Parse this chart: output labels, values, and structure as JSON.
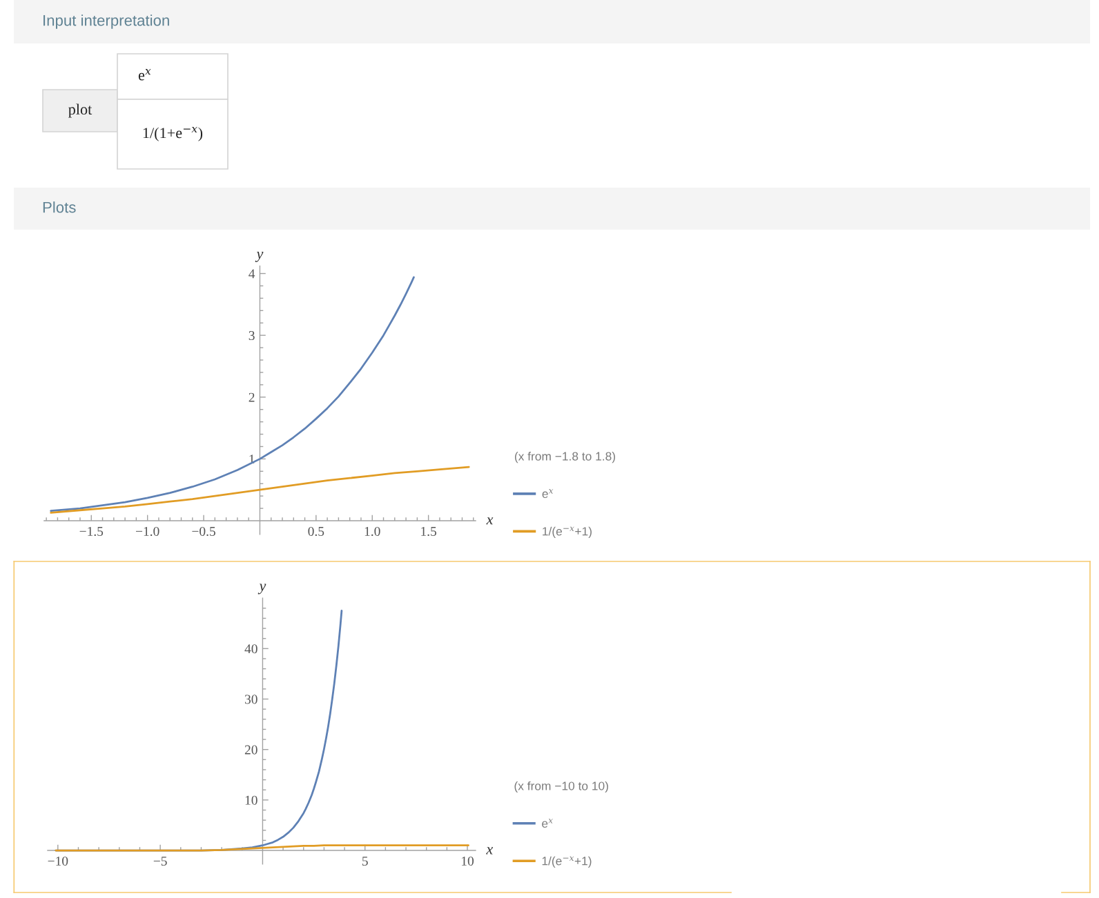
{
  "chart_data": [
    {
      "type": "other",
      "title": "Input interpretation",
      "annotations": [
        "plot",
        "e$^{x}$",
        "1/(1+e$^{−x}$)"
      ]
    },
    {
      "type": "line",
      "title": "Plots",
      "xlabel": "x",
      "ylabel": "y",
      "legend": "right",
      "legend_title": "(x from −1.8 to 1.8)",
      "xlim": [
        -1.92,
        1.92
      ],
      "ylim": [
        -0.22,
        4.12
      ],
      "xticks": [
        {
          "value": -1.9,
          "label": null
        },
        {
          "value": -1.8,
          "label": null
        },
        {
          "value": -1.7,
          "label": null
        },
        {
          "value": -1.6,
          "label": null
        },
        {
          "value": -1.5,
          "label": "−1.5"
        },
        {
          "value": -1.4,
          "label": null
        },
        {
          "value": -1.3,
          "label": null
        },
        {
          "value": -1.2,
          "label": null
        },
        {
          "value": -1.1,
          "label": null
        },
        {
          "value": -1.0,
          "label": "−1.0"
        },
        {
          "value": -0.9,
          "label": null
        },
        {
          "value": -0.8,
          "label": null
        },
        {
          "value": -0.7,
          "label": null
        },
        {
          "value": -0.6,
          "label": null
        },
        {
          "value": -0.5,
          "label": "−0.5"
        },
        {
          "value": -0.4,
          "label": null
        },
        {
          "value": -0.3,
          "label": null
        },
        {
          "value": -0.2,
          "label": null
        },
        {
          "value": -0.1,
          "label": null
        },
        {
          "value": 0.1,
          "label": null
        },
        {
          "value": 0.2,
          "label": null
        },
        {
          "value": 0.3,
          "label": null
        },
        {
          "value": 0.4,
          "label": null
        },
        0.5,
        {
          "value": 0.6,
          "label": null
        },
        {
          "value": 0.7,
          "label": null
        },
        {
          "value": 0.8,
          "label": null
        },
        {
          "value": 0.9,
          "label": null
        },
        {
          "value": 1,
          "label": "1.0"
        },
        {
          "value": 1.1,
          "label": null
        },
        {
          "value": 1.2,
          "label": null
        },
        {
          "value": 1.3,
          "label": null
        },
        {
          "value": 1.4,
          "label": null
        },
        1.5,
        {
          "value": 1.6,
          "label": null
        },
        {
          "value": 1.7,
          "label": null
        },
        {
          "value": 1.8,
          "label": null
        },
        {
          "value": 1.9,
          "label": null
        }
      ],
      "yticks": [
        {
          "value": 0.2,
          "label": null
        },
        {
          "value": 0.4,
          "label": null
        },
        {
          "value": 0.6,
          "label": null
        },
        {
          "value": 0.8,
          "label": null
        },
        1,
        {
          "value": 1.2,
          "label": null
        },
        {
          "value": 1.4,
          "label": null
        },
        {
          "value": 1.6,
          "label": null
        },
        {
          "value": 1.8,
          "label": null
        },
        2,
        {
          "value": 2.2,
          "label": null
        },
        {
          "value": 2.4,
          "label": null
        },
        {
          "value": 2.6,
          "label": null
        },
        {
          "value": 2.8,
          "label": null
        },
        3,
        {
          "value": 3.2,
          "label": null
        },
        {
          "value": 3.4,
          "label": null
        },
        {
          "value": 3.6,
          "label": null
        },
        {
          "value": 3.8,
          "label": null
        },
        4
      ],
      "series": [
        {
          "name": "e$^{x}$",
          "color": "#5e81b5",
          "x": [
            -1.86,
            -1.6,
            -1.4,
            -1.2,
            -1.0,
            -0.8,
            -0.6,
            -0.4,
            -0.2,
            0,
            0.1,
            0.2,
            0.3,
            0.4,
            0.5,
            0.6,
            0.7,
            0.8,
            0.9,
            1.0,
            1.05,
            1.1,
            1.15,
            1.2,
            1.25,
            1.3,
            1.35,
            1.37
          ],
          "values": [
            0.16,
            0.2,
            0.25,
            0.3,
            0.37,
            0.45,
            0.55,
            0.67,
            0.82,
            1.0,
            1.11,
            1.22,
            1.35,
            1.49,
            1.65,
            1.82,
            2.01,
            2.23,
            2.46,
            2.72,
            2.86,
            3.0,
            3.16,
            3.32,
            3.49,
            3.67,
            3.86,
            3.94
          ]
        },
        {
          "name": "1/(e$^{−x}$+1)",
          "color": "#e19c24",
          "x": [
            -1.86,
            -1.6,
            -1.4,
            -1.2,
            -1.0,
            -0.8,
            -0.6,
            -0.4,
            -0.2,
            0,
            0.2,
            0.4,
            0.6,
            0.8,
            1.0,
            1.2,
            1.4,
            1.6,
            1.86
          ],
          "values": [
            0.13,
            0.17,
            0.2,
            0.23,
            0.27,
            0.31,
            0.35,
            0.4,
            0.45,
            0.5,
            0.55,
            0.6,
            0.65,
            0.69,
            0.73,
            0.77,
            0.8,
            0.83,
            0.87
          ]
        }
      ]
    },
    {
      "type": "line",
      "xlabel": "x",
      "ylabel": "y",
      "legend": "right",
      "legend_title": "(x from −10 to 10)",
      "xlim": [
        -10.5,
        10.4
      ],
      "ylim": [
        -2.7,
        50
      ],
      "xticks": [
        {
          "value": -10,
          "label": "−10"
        },
        {
          "value": -9,
          "label": null
        },
        {
          "value": -8,
          "label": null
        },
        {
          "value": -7,
          "label": null
        },
        {
          "value": -6,
          "label": null
        },
        {
          "value": -5,
          "label": "−5"
        },
        {
          "value": -4,
          "label": null
        },
        {
          "value": -3,
          "label": null
        },
        {
          "value": -2,
          "label": null
        },
        {
          "value": -1,
          "label": null
        },
        {
          "value": 1,
          "label": null
        },
        {
          "value": 2,
          "label": null
        },
        {
          "value": 3,
          "label": null
        },
        {
          "value": 4,
          "label": null
        },
        5,
        {
          "value": 6,
          "label": null
        },
        {
          "value": 7,
          "label": null
        },
        {
          "value": 8,
          "label": null
        },
        {
          "value": 9,
          "label": null
        },
        10
      ],
      "yticks": [
        {
          "value": 2,
          "label": null
        },
        {
          "value": 4,
          "label": null
        },
        {
          "value": 6,
          "label": null
        },
        {
          "value": 8,
          "label": null
        },
        10,
        {
          "value": 12,
          "label": null
        },
        {
          "value": 14,
          "label": null
        },
        {
          "value": 16,
          "label": null
        },
        {
          "value": 18,
          "label": null
        },
        20,
        {
          "value": 22,
          "label": null
        },
        {
          "value": 24,
          "label": null
        },
        {
          "value": 26,
          "label": null
        },
        {
          "value": 28,
          "label": null
        },
        30,
        {
          "value": 32,
          "label": null
        },
        {
          "value": 34,
          "label": null
        },
        {
          "value": 36,
          "label": null
        },
        {
          "value": 38,
          "label": null
        },
        40,
        {
          "value": 42,
          "label": null
        },
        {
          "value": 44,
          "label": null
        },
        {
          "value": 46,
          "label": null
        },
        {
          "value": 48,
          "label": null
        }
      ],
      "series": [
        {
          "name": "e$^{x}$",
          "color": "#5e81b5",
          "x": [
            -10.1,
            -8,
            -6,
            -4,
            -3,
            -2,
            -1,
            -0.5,
            0,
            0.25,
            0.5,
            0.75,
            1,
            1.25,
            1.5,
            1.75,
            2,
            2.1,
            2.25,
            2.4,
            2.5,
            2.6,
            2.75,
            2.9,
            3,
            3.1,
            3.2,
            3.3,
            3.4,
            3.5,
            3.6,
            3.7,
            3.8,
            3.86
          ],
          "values": [
            0.0,
            0.0,
            0.0,
            0.0,
            0.0,
            0.1,
            0.4,
            0.6,
            1.0,
            1.3,
            1.6,
            2.1,
            2.7,
            3.5,
            4.5,
            5.8,
            7.4,
            8.2,
            9.5,
            11.0,
            12.2,
            13.5,
            15.6,
            18.2,
            20.1,
            22.2,
            24.5,
            27.1,
            30.0,
            33.1,
            36.6,
            40.4,
            44.7,
            47.5
          ]
        },
        {
          "name": "1/(e$^{−x}$+1)",
          "color": "#e19c24",
          "x": [
            -10.1,
            -8,
            -6,
            -4,
            -3,
            -2,
            -1.5,
            -1,
            -0.5,
            0,
            0.5,
            1,
            1.5,
            2,
            2.5,
            3,
            4,
            5,
            6,
            8,
            10.05
          ],
          "values": [
            0.0,
            0.0,
            0.0,
            0.0,
            0.0,
            0.1,
            0.2,
            0.3,
            0.4,
            0.5,
            0.6,
            0.7,
            0.8,
            0.9,
            0.9,
            1.0,
            1.0,
            1.0,
            1.0,
            1.0,
            1.0
          ]
        }
      ]
    }
  ]
}
